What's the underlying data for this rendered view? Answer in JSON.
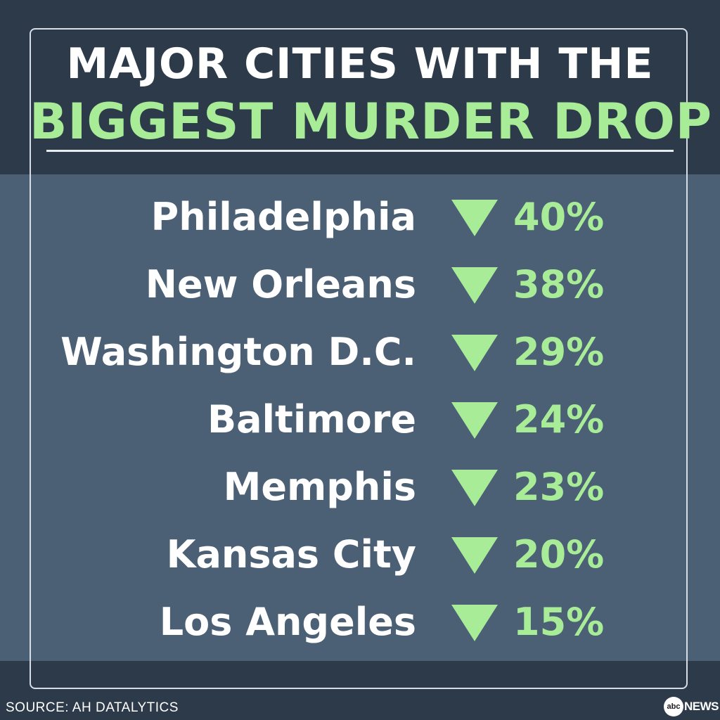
{
  "title": {
    "line1": "MAJOR CITIES WITH THE",
    "line2": "BIGGEST MURDER DROP"
  },
  "rows": [
    {
      "city": "Philadelphia",
      "change": "40%"
    },
    {
      "city": "New Orleans",
      "change": "38%"
    },
    {
      "city": "Washington D.C.",
      "change": "29%"
    },
    {
      "city": "Baltimore",
      "change": "24%"
    },
    {
      "city": "Memphis",
      "change": "23%"
    },
    {
      "city": "Kansas City",
      "change": "20%"
    },
    {
      "city": "Los Angeles",
      "change": "15%"
    }
  ],
  "source": "SOURCE: AH DATALYTICS",
  "logo": {
    "circle": "abc",
    "text": "NEWS"
  },
  "colors": {
    "accent": "#a8ec98",
    "text": "#ffffff",
    "band_dark": "#2c3a4a",
    "band_mid": "#4b5f75"
  },
  "icons": {
    "row_indicator": "down-triangle-icon"
  }
}
